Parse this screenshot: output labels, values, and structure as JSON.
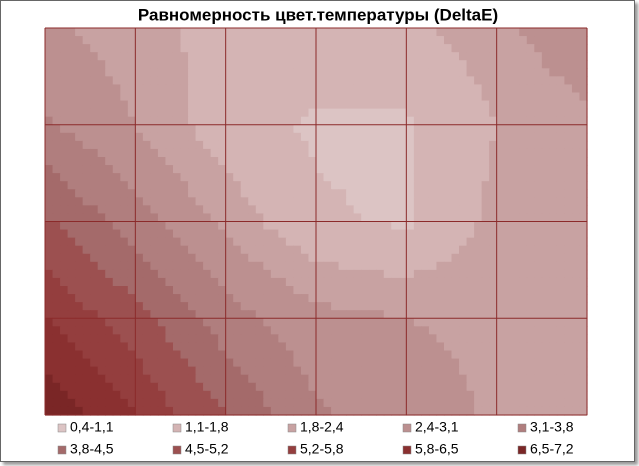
{
  "chart_data": {
    "type": "contour",
    "title": "Равномерность цвет.температуры (DeltaE)",
    "z": [
      [
        2.6,
        2.0,
        1.6,
        1.5,
        1.6,
        2.2,
        3.0
      ],
      [
        3.2,
        2.4,
        1.4,
        1.0,
        1.0,
        1.8,
        2.2
      ],
      [
        4.6,
        3.4,
        2.2,
        1.2,
        1.0,
        2.0,
        2.0
      ],
      [
        5.8,
        4.8,
        3.4,
        2.6,
        2.4,
        2.2,
        1.9
      ],
      [
        7.0,
        5.8,
        4.5,
        3.2,
        2.8,
        2.3,
        1.9
      ]
    ],
    "levels": [
      0.4,
      1.1,
      1.8,
      2.4,
      3.1,
      3.8,
      4.5,
      5.2,
      5.8,
      6.5,
      7.2
    ],
    "series": [
      {
        "name": "0,4-1,1",
        "color": "#dcc4c4"
      },
      {
        "name": "1,1-1,8",
        "color": "#d4b4b4"
      },
      {
        "name": "1,8-2,4",
        "color": "#c8a2a2"
      },
      {
        "name": "2,4-3,1",
        "color": "#bc9090"
      },
      {
        "name": "3,1-3,8",
        "color": "#b07e7e"
      },
      {
        "name": "3,8-4,5",
        "color": "#a46a6a"
      },
      {
        "name": "4,5-5,2",
        "color": "#9c5050"
      },
      {
        "name": "5,2-5,8",
        "color": "#943e3e"
      },
      {
        "name": "5,8-6,5",
        "color": "#8a3030"
      },
      {
        "name": "6,5-7,2",
        "color": "#7a2626"
      }
    ],
    "grid": true,
    "grid_color": "#8b2a2a"
  }
}
